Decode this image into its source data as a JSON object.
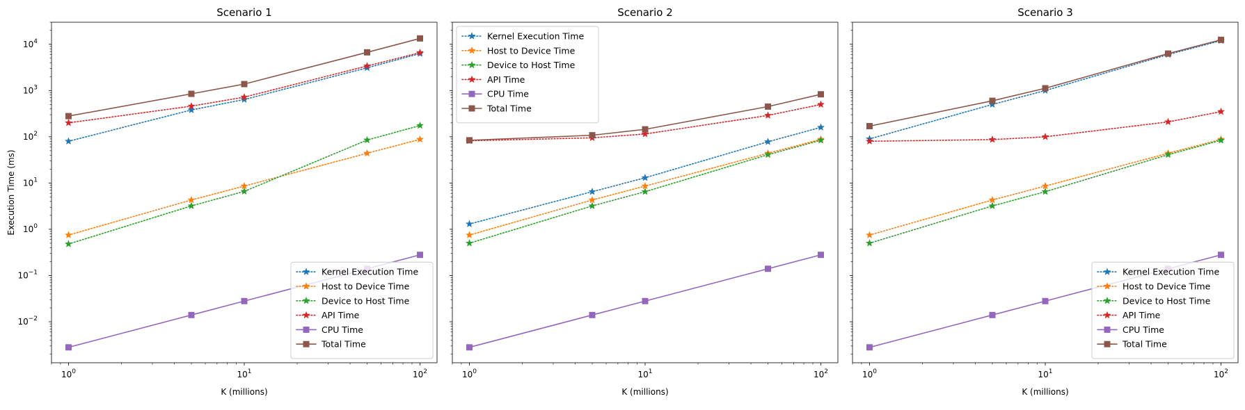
{
  "chart_data": [
    {
      "type": "line",
      "title": "Scenario 1",
      "xlabel": "K (millions)",
      "ylabel": "Execution Time (ms)",
      "xscale": "log",
      "yscale": "log",
      "xlim": [
        0.8,
        125
      ],
      "ylim": [
        0.0013,
        30000
      ],
      "x_ticks": [
        {
          "v": 1,
          "label": "10",
          "exp": "0"
        },
        {
          "v": 10,
          "label": "10",
          "exp": "1"
        },
        {
          "v": 100,
          "label": "10",
          "exp": "2"
        }
      ],
      "y_ticks": [
        {
          "v": 0.01,
          "label": "10",
          "exp": "−2"
        },
        {
          "v": 0.1,
          "label": "10",
          "exp": "−1"
        },
        {
          "v": 1,
          "label": "10",
          "exp": "0"
        },
        {
          "v": 10,
          "label": "10",
          "exp": "1"
        },
        {
          "v": 100,
          "label": "10",
          "exp": "2"
        },
        {
          "v": 1000,
          "label": "10",
          "exp": "3"
        },
        {
          "v": 10000,
          "label": "10",
          "exp": "4"
        }
      ],
      "legend_position": "bottom-right",
      "x": [
        1,
        5,
        10,
        50,
        100
      ],
      "series": [
        {
          "name": "Kernel Execution Time",
          "color": "#1f77b4",
          "marker": "star",
          "linestyle": "dotted",
          "values": [
            80,
            380,
            640,
            3100,
            6300
          ]
        },
        {
          "name": "Host to Device Time",
          "color": "#ff7f0e",
          "marker": "star",
          "linestyle": "dotted",
          "values": [
            0.75,
            4.3,
            8.6,
            44,
            88
          ]
        },
        {
          "name": "Device to Host Time",
          "color": "#2ca02c",
          "marker": "star",
          "linestyle": "dotted",
          "values": [
            0.48,
            3.2,
            6.6,
            85,
            175
          ]
        },
        {
          "name": "API Time",
          "color": "#d62728",
          "marker": "star",
          "linestyle": "dotted",
          "values": [
            200,
            460,
            720,
            3400,
            6600
          ]
        },
        {
          "name": "CPU Time",
          "color": "#9467bd",
          "marker": "square",
          "linestyle": "solid",
          "values": [
            0.0028,
            0.014,
            0.028,
            0.14,
            0.28
          ]
        },
        {
          "name": "Total Time",
          "color": "#8c564b",
          "marker": "square",
          "linestyle": "solid",
          "values": [
            280,
            850,
            1380,
            6700,
            13400
          ]
        }
      ]
    },
    {
      "type": "line",
      "title": "Scenario 2",
      "xlabel": "K (millions)",
      "ylabel": "",
      "xscale": "log",
      "yscale": "log",
      "xlim": [
        0.8,
        125
      ],
      "ylim": [
        0.0013,
        30000
      ],
      "x_ticks": [
        {
          "v": 1,
          "label": "10",
          "exp": "0"
        },
        {
          "v": 10,
          "label": "10",
          "exp": "1"
        },
        {
          "v": 100,
          "label": "10",
          "exp": "2"
        }
      ],
      "y_ticks": [],
      "legend_position": "top-left",
      "x": [
        1,
        5,
        10,
        50,
        100
      ],
      "series": [
        {
          "name": "Kernel Execution Time",
          "color": "#1f77b4",
          "marker": "star",
          "linestyle": "dotted",
          "values": [
            1.3,
            6.5,
            13,
            78,
            160
          ]
        },
        {
          "name": "Host to Device Time",
          "color": "#ff7f0e",
          "marker": "star",
          "linestyle": "dotted",
          "values": [
            0.75,
            4.3,
            8.6,
            44,
            88
          ]
        },
        {
          "name": "Device to Host Time",
          "color": "#2ca02c",
          "marker": "star",
          "linestyle": "dotted",
          "values": [
            0.5,
            3.2,
            6.5,
            41,
            84
          ]
        },
        {
          "name": "API Time",
          "color": "#d62728",
          "marker": "star",
          "linestyle": "dotted",
          "values": [
            82,
            95,
            115,
            290,
            500
          ]
        },
        {
          "name": "CPU Time",
          "color": "#9467bd",
          "marker": "square",
          "linestyle": "solid",
          "values": [
            0.0028,
            0.014,
            0.028,
            0.14,
            0.28
          ]
        },
        {
          "name": "Total Time",
          "color": "#8c564b",
          "marker": "square",
          "linestyle": "solid",
          "values": [
            84,
            108,
            145,
            450,
            830
          ]
        }
      ]
    },
    {
      "type": "line",
      "title": "Scenario 3",
      "xlabel": "K (millions)",
      "ylabel": "",
      "xscale": "log",
      "yscale": "log",
      "xlim": [
        0.8,
        125
      ],
      "ylim": [
        0.0013,
        30000
      ],
      "x_ticks": [
        {
          "v": 1,
          "label": "10",
          "exp": "0"
        },
        {
          "v": 10,
          "label": "10",
          "exp": "1"
        },
        {
          "v": 100,
          "label": "10",
          "exp": "2"
        }
      ],
      "y_ticks": [],
      "legend_position": "bottom-right",
      "x": [
        1,
        5,
        10,
        50,
        100
      ],
      "series": [
        {
          "name": "Kernel Execution Time",
          "color": "#1f77b4",
          "marker": "star",
          "linestyle": "dotted",
          "values": [
            90,
            500,
            1000,
            6000,
            12000
          ]
        },
        {
          "name": "Host to Device Time",
          "color": "#ff7f0e",
          "marker": "star",
          "linestyle": "dotted",
          "values": [
            0.75,
            4.3,
            8.6,
            44,
            88
          ]
        },
        {
          "name": "Device to Host Time",
          "color": "#2ca02c",
          "marker": "star",
          "linestyle": "dotted",
          "values": [
            0.5,
            3.2,
            6.5,
            41,
            84
          ]
        },
        {
          "name": "API Time",
          "color": "#d62728",
          "marker": "star",
          "linestyle": "dotted",
          "values": [
            80,
            87,
            100,
            210,
            350
          ]
        },
        {
          "name": "CPU Time",
          "color": "#9467bd",
          "marker": "square",
          "linestyle": "solid",
          "values": [
            0.0028,
            0.014,
            0.028,
            0.14,
            0.28
          ]
        },
        {
          "name": "Total Time",
          "color": "#8c564b",
          "marker": "square",
          "linestyle": "solid",
          "values": [
            170,
            600,
            1120,
            6300,
            12500
          ]
        }
      ]
    }
  ]
}
